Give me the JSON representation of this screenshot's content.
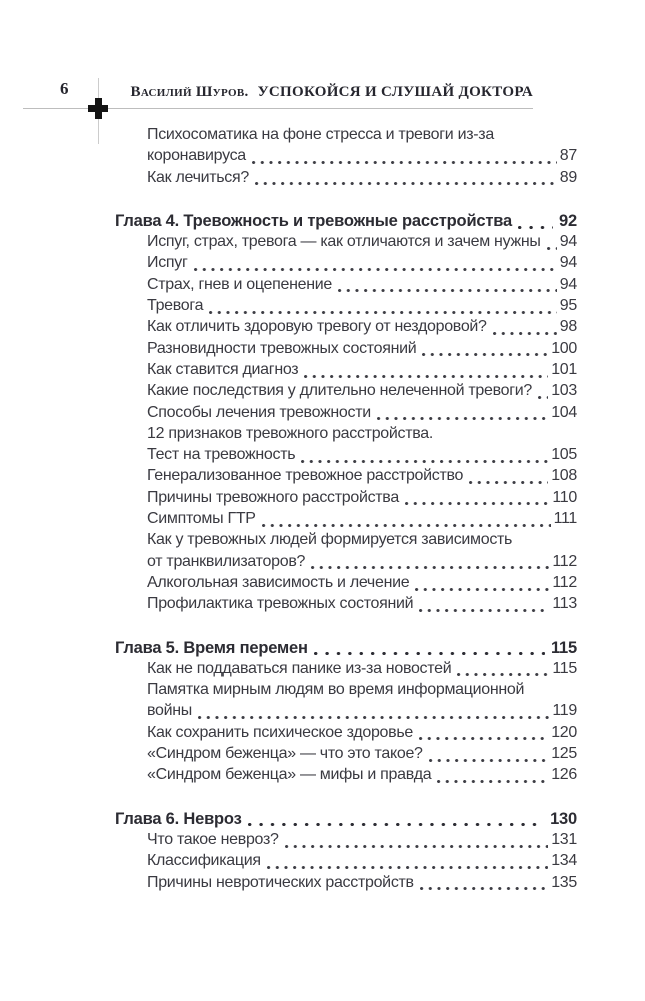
{
  "header": {
    "page_number": "6",
    "author": "Василий Шуров.",
    "book_title": "УСПОКОЙСЯ И СЛУШАЙ ДОКТОРА"
  },
  "colors": {
    "text": "#3a3a41",
    "chapter": "#2c2c33",
    "header": "#26262e",
    "rule": "#bdbdbd",
    "cross_mark": "#141414"
  },
  "toc": {
    "sections": [
      {
        "heading": null,
        "entries": [
          {
            "lines": [
              "Психосоматика на фоне стресса и тревоги из-за",
              "коронавируса"
            ],
            "page": "87"
          },
          {
            "lines": [
              "Как лечиться?"
            ],
            "page": "89"
          }
        ]
      },
      {
        "heading": {
          "title": "Глава 4. Тревожность и тревожные расстройства",
          "page": "92"
        },
        "entries": [
          {
            "lines": [
              "Испуг, страх, тревога — как отличаются и зачем нужны"
            ],
            "page": "94"
          },
          {
            "lines": [
              "Испуг"
            ],
            "page": "94"
          },
          {
            "lines": [
              "Страх, гнев и оцепенение"
            ],
            "page": "94"
          },
          {
            "lines": [
              "Тревога"
            ],
            "page": "95"
          },
          {
            "lines": [
              "Как отличить здоровую тревогу от нездоровой?"
            ],
            "page": "98"
          },
          {
            "lines": [
              "Разновидности тревожных состояний"
            ],
            "page": "100"
          },
          {
            "lines": [
              "Как ставится диагноз"
            ],
            "page": "101"
          },
          {
            "lines": [
              "Какие последствия у длительно нелеченной тревоги?"
            ],
            "page": "103"
          },
          {
            "lines": [
              "Способы лечения тревожности"
            ],
            "page": "104"
          },
          {
            "lines": [
              "12 признаков тревожного расстройства.",
              "Тест на тревожность"
            ],
            "page": "105"
          },
          {
            "lines": [
              "Генерализованное тревожное расстройство"
            ],
            "page": "108"
          },
          {
            "lines": [
              "Причины тревожного расстройства"
            ],
            "page": "110"
          },
          {
            "lines": [
              "Симптомы ГТР"
            ],
            "page": "111"
          },
          {
            "lines": [
              "Как у тревожных людей формируется зависимость",
              "от транквилизаторов?"
            ],
            "page": "112"
          },
          {
            "lines": [
              "Алкогольная зависимость и лечение"
            ],
            "page": "112"
          },
          {
            "lines": [
              "Профилактика тревожных состояний"
            ],
            "page": "113"
          }
        ]
      },
      {
        "heading": {
          "title": "Глава 5. Время перемен",
          "page": "115"
        },
        "entries": [
          {
            "lines": [
              "Как не поддаваться панике из-за новостей"
            ],
            "page": "115"
          },
          {
            "lines": [
              "Памятка мирным людям во время информационной",
              "войны"
            ],
            "page": "119"
          },
          {
            "lines": [
              "Как сохранить психическое здоровье"
            ],
            "page": "120"
          },
          {
            "lines": [
              "«Синдром беженца» — что это такое?"
            ],
            "page": "125"
          },
          {
            "lines": [
              "«Синдром беженца» — мифы и правда"
            ],
            "page": "126"
          }
        ]
      },
      {
        "heading": {
          "title": "Глава 6. Невроз",
          "page": "130"
        },
        "entries": [
          {
            "lines": [
              "Что такое невроз?"
            ],
            "page": "131"
          },
          {
            "lines": [
              "Классификация"
            ],
            "page": "134"
          },
          {
            "lines": [
              "Причины невротических расстройств"
            ],
            "page": "135"
          }
        ]
      }
    ]
  }
}
